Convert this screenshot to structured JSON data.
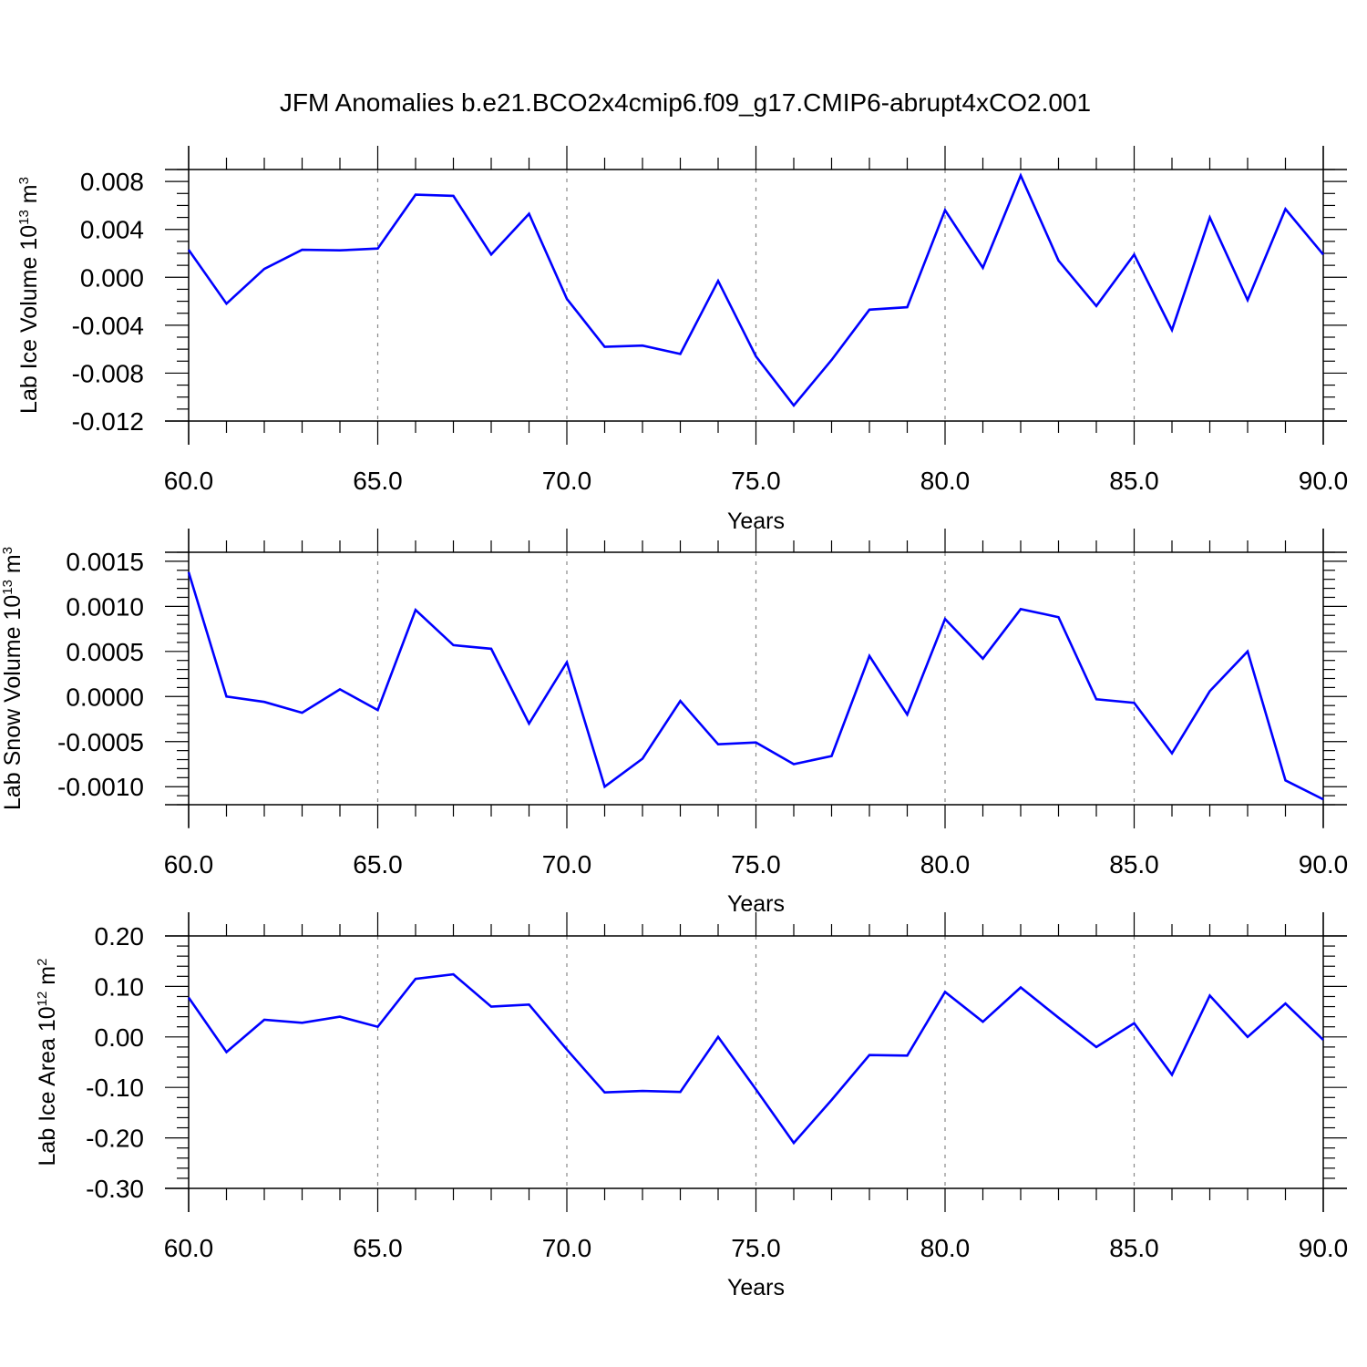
{
  "title": "JFM Anomalies b.e21.BCO2x4cmip6.f09_g17.CMIP6-abrupt4xCO2.001",
  "chart_data": [
    {
      "type": "line",
      "ylabel": {
        "main": "Lab Ice Volume 10",
        "exp": "13",
        "unit": " m",
        "unit_exp": "3"
      },
      "xlabel": "Years",
      "xlim": [
        60,
        90
      ],
      "ylim": [
        -0.012,
        0.009
      ],
      "yticks": [
        -0.012,
        -0.008,
        -0.004,
        0.0,
        0.004,
        0.008
      ],
      "ytick_labels": [
        "-0.012",
        "-0.008",
        "-0.004",
        "0.000",
        "0.004",
        "0.008"
      ],
      "y_minor_step": 0.001,
      "xticks": [
        60,
        65,
        70,
        75,
        80,
        85,
        90
      ],
      "xtick_labels": [
        "60.0",
        "65.0",
        "70.0",
        "75.0",
        "80.0",
        "85.0",
        "90.0"
      ],
      "x_minor_step": 1,
      "grid_x": true,
      "line_color": "#0000ff",
      "x": [
        60,
        61,
        62,
        63,
        64,
        65,
        66,
        67,
        68,
        69,
        70,
        71,
        72,
        73,
        74,
        75,
        76,
        77,
        78,
        79,
        80,
        81,
        82,
        83,
        84,
        85,
        86,
        87,
        88,
        89,
        90
      ],
      "y": [
        0.0023,
        -0.0022,
        0.0007,
        0.0023,
        0.00225,
        0.0024,
        0.0069,
        0.0068,
        0.0019,
        0.0053,
        -0.0018,
        -0.0058,
        -0.0057,
        -0.0064,
        -0.0003,
        -0.0066,
        -0.0107,
        -0.0069,
        -0.0027,
        -0.0025,
        0.0056,
        0.0008,
        0.0085,
        0.0014,
        -0.0024,
        0.0019,
        -0.0044,
        0.005,
        -0.0019,
        0.0057,
        0.0019
      ]
    },
    {
      "type": "line",
      "ylabel": {
        "main": "Lab Snow Volume 10",
        "exp": "13",
        "unit": " m",
        "unit_exp": "3"
      },
      "xlabel": "Years",
      "xlim": [
        60,
        90
      ],
      "ylim": [
        -0.0012,
        0.0016
      ],
      "yticks": [
        -0.001,
        -0.0005,
        0.0,
        0.0005,
        0.001,
        0.0015
      ],
      "ytick_labels": [
        "-0.0010",
        "-0.0005",
        "0.0000",
        "0.0005",
        "0.0010",
        "0.0015"
      ],
      "y_minor_step": 0.0001,
      "xticks": [
        60,
        65,
        70,
        75,
        80,
        85,
        90
      ],
      "xtick_labels": [
        "60.0",
        "65.0",
        "70.0",
        "75.0",
        "80.0",
        "85.0",
        "90.0"
      ],
      "x_minor_step": 1,
      "grid_x": true,
      "line_color": "#0000ff",
      "x": [
        60,
        61,
        62,
        63,
        64,
        65,
        66,
        67,
        68,
        69,
        70,
        71,
        72,
        73,
        74,
        75,
        76,
        77,
        78,
        79,
        80,
        81,
        82,
        83,
        84,
        85,
        86,
        87,
        88,
        89,
        90
      ],
      "y": [
        0.00138,
        0.0,
        -6e-05,
        -0.00018,
        8e-05,
        -0.00015,
        0.00096,
        0.00057,
        0.00053,
        -0.0003,
        0.00038,
        -0.001,
        -0.00069,
        -5e-05,
        -0.00053,
        -0.00051,
        -0.00075,
        -0.00066,
        0.00045,
        -0.0002,
        0.00086,
        0.00042,
        0.00097,
        0.00088,
        -3e-05,
        -7e-05,
        -0.00063,
        6e-05,
        0.0005,
        -0.00093,
        -0.00114
      ]
    },
    {
      "type": "line",
      "ylabel": {
        "main": "Lab Ice Area 10",
        "exp": "12",
        "unit": " m",
        "unit_exp": "2"
      },
      "xlabel": "Years",
      "xlim": [
        60,
        90
      ],
      "ylim": [
        -0.3,
        0.2
      ],
      "yticks": [
        -0.3,
        -0.2,
        -0.1,
        0.0,
        0.1,
        0.2
      ],
      "ytick_labels": [
        "-0.30",
        "-0.20",
        "-0.10",
        "0.00",
        "0.10",
        "0.20"
      ],
      "y_minor_step": 0.02,
      "xticks": [
        60,
        65,
        70,
        75,
        80,
        85,
        90
      ],
      "xtick_labels": [
        "60.0",
        "65.0",
        "70.0",
        "75.0",
        "80.0",
        "85.0",
        "90.0"
      ],
      "x_minor_step": 1,
      "grid_x": true,
      "line_color": "#0000ff",
      "x": [
        60,
        61,
        62,
        63,
        64,
        65,
        66,
        67,
        68,
        69,
        70,
        71,
        72,
        73,
        74,
        75,
        76,
        77,
        78,
        79,
        80,
        81,
        82,
        83,
        84,
        85,
        86,
        87,
        88,
        89,
        90
      ],
      "y": [
        0.078,
        -0.03,
        0.034,
        0.028,
        0.04,
        0.02,
        0.115,
        0.124,
        0.06,
        0.064,
        -0.025,
        -0.11,
        -0.107,
        -0.109,
        0.0,
        -0.104,
        -0.21,
        -0.125,
        -0.036,
        -0.037,
        0.089,
        0.03,
        0.098,
        0.038,
        -0.02,
        0.027,
        -0.075,
        0.082,
        0.0,
        0.066,
        -0.006
      ]
    }
  ]
}
